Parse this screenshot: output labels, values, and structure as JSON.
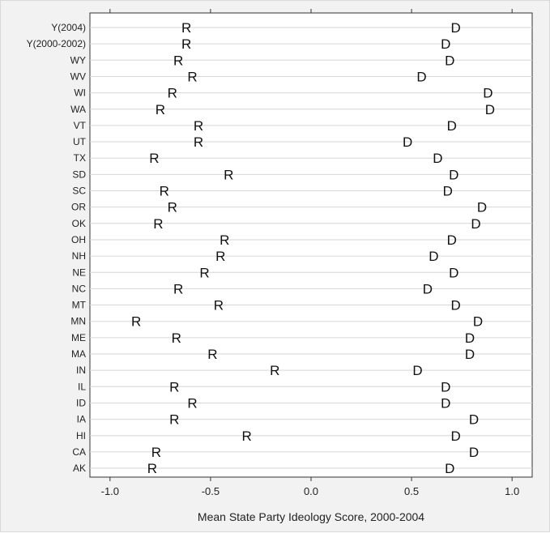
{
  "chart_data": {
    "type": "scatter",
    "title": "",
    "xlabel": "Mean State Party Ideology Score, 2000-2004",
    "ylabel": "",
    "xlim": [
      -1.1,
      1.1
    ],
    "xticks": [
      -1.0,
      -0.5,
      0.0,
      0.5,
      1.0
    ],
    "xtick_labels": [
      "-1.0",
      "-0.5",
      "0.0",
      "0.5",
      "1.0"
    ],
    "grid": "horizontal",
    "legend": "none",
    "categories": [
      "Y(2004)",
      "Y(2000-2002)",
      "WY",
      "WV",
      "WI",
      "WA",
      "VT",
      "UT",
      "TX",
      "SD",
      "SC",
      "OR",
      "OK",
      "OH",
      "NH",
      "NE",
      "NC",
      "MT",
      "MN",
      "ME",
      "MA",
      "IN",
      "IL",
      "ID",
      "IA",
      "HI",
      "CA",
      "AK"
    ],
    "series": [
      {
        "marker": "R",
        "values": [
          -0.62,
          -0.62,
          -0.66,
          -0.59,
          -0.69,
          -0.75,
          -0.56,
          -0.56,
          -0.78,
          -0.41,
          -0.73,
          -0.69,
          -0.76,
          -0.43,
          -0.45,
          -0.53,
          -0.66,
          -0.46,
          -0.87,
          -0.67,
          -0.49,
          -0.18,
          -0.68,
          -0.59,
          -0.68,
          -0.32,
          -0.77,
          -0.79
        ]
      },
      {
        "marker": "D",
        "values": [
          0.72,
          0.67,
          0.69,
          0.55,
          0.88,
          0.89,
          0.7,
          0.48,
          0.63,
          0.71,
          0.68,
          0.85,
          0.82,
          0.7,
          0.61,
          0.71,
          0.58,
          0.72,
          0.83,
          0.79,
          0.79,
          0.53,
          0.67,
          0.67,
          0.81,
          0.72,
          0.81,
          0.69
        ]
      }
    ]
  }
}
